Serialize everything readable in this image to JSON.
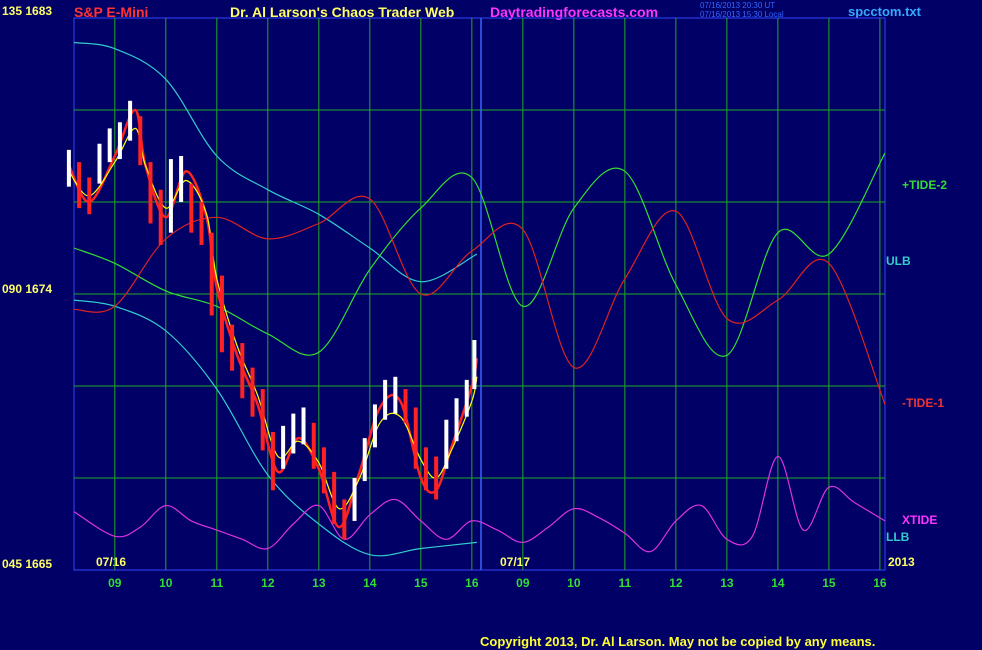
{
  "header": {
    "instrument": "S&P E-Mini",
    "title": "Dr. Al Larson's Chaos Trader Web",
    "site": "Daytradingforecasts.com",
    "timestamp_ut": "07/16/2013 20:30 UT",
    "timestamp_local": "07/16/2013 15:30 Local",
    "filename": "spcctom.txt"
  },
  "footer": {
    "copyright": "Copyright 2013, Dr. Al Larson. May not be copied by any means."
  },
  "chart_data": {
    "type": "line",
    "y_axis_labels": [
      "135 1683",
      "090 1674",
      "045 1665"
    ],
    "ylim": [
      1665,
      1683
    ],
    "x_ticks": [
      "09",
      "10",
      "11",
      "12",
      "13",
      "14",
      "15",
      "16",
      "09",
      "10",
      "11",
      "12",
      "13",
      "14",
      "15",
      "16"
    ],
    "date_labels": [
      "07/16",
      "07/17",
      "2013"
    ],
    "series_labels": [
      "+TIDE-2",
      "ULB",
      "-TIDE-1",
      "XTIDE",
      "LLB"
    ],
    "colors": {
      "background": "#000066",
      "grid": "#22aa22",
      "price_up": "#ffffff",
      "price_down": "#ff2222",
      "average": "#ffff00",
      "bands": "#33cccc",
      "tide_pos": "#33dd33",
      "tide_neg": "#dd2222",
      "xtide": "#dd33dd"
    },
    "series": [
      {
        "name": "ULB",
        "x": [
          8.2,
          9.0,
          10.0,
          11.0,
          12.0,
          13.0,
          14.0,
          15.0,
          16.1
        ],
        "y": [
          1682.2,
          1682.0,
          1681.0,
          1678.5,
          1677.4,
          1676.6,
          1675.5,
          1674.4,
          1675.3
        ]
      },
      {
        "name": "LLB",
        "x": [
          8.2,
          9.0,
          10.0,
          11.0,
          12.0,
          13.0,
          14.0,
          15.0,
          16.1
        ],
        "y": [
          1673.8,
          1673.6,
          1672.8,
          1670.9,
          1668.1,
          1666.5,
          1665.5,
          1665.7,
          1665.9
        ]
      },
      {
        "name": "+TIDE-2",
        "x": [
          8.2,
          9.0,
          10.0,
          11.0,
          12.0,
          13.0,
          14.0,
          15.0,
          16.0,
          17.0,
          18.0,
          19.0,
          20.0,
          21.0,
          22.0,
          23.0,
          24.1
        ],
        "y": [
          1675.5,
          1675.0,
          1674.1,
          1673.6,
          1672.7,
          1672.1,
          1674.8,
          1676.8,
          1677.8,
          1673.6,
          1676.8,
          1678.0,
          1674.3,
          1672.0,
          1676.0,
          1675.3,
          1678.6
        ]
      },
      {
        "name": "-TIDE-1",
        "x": [
          8.2,
          9.0,
          10.0,
          11.0,
          12.0,
          13.0,
          14.0,
          15.0,
          16.0,
          17.0,
          18.0,
          19.0,
          20.0,
          21.0,
          22.0,
          23.0,
          24.1
        ],
        "y": [
          1673.5,
          1673.6,
          1675.8,
          1676.5,
          1675.8,
          1676.3,
          1677.1,
          1674.0,
          1675.4,
          1676.1,
          1671.6,
          1674.5,
          1676.7,
          1673.2,
          1673.8,
          1675.0,
          1670.4
        ]
      },
      {
        "name": "Price",
        "x": [
          8.1,
          8.5,
          9.0,
          9.4,
          9.6,
          10.0,
          10.4,
          10.8,
          11.0,
          11.4,
          11.8,
          12.2,
          12.6,
          13.0,
          13.4,
          13.8,
          14.2,
          14.6,
          15.0,
          15.3,
          15.6,
          16.0,
          16.1
        ],
        "y": [
          1678.2,
          1677.0,
          1678.5,
          1680.0,
          1678.2,
          1676.5,
          1678.0,
          1676.5,
          1674.2,
          1672.0,
          1670.4,
          1668.2,
          1669.3,
          1668.3,
          1666.4,
          1668.2,
          1670.3,
          1670.5,
          1668.0,
          1667.6,
          1669.0,
          1671.0,
          1671.9
        ]
      },
      {
        "name": "Average",
        "x": [
          8.1,
          8.5,
          9.0,
          9.4,
          9.6,
          10.0,
          10.4,
          10.8,
          11.0,
          11.4,
          11.8,
          12.2,
          12.6,
          13.0,
          13.4,
          13.8,
          14.2,
          14.6,
          15.0,
          15.3,
          15.6,
          16.0,
          16.1
        ],
        "y": [
          1678.0,
          1677.2,
          1678.3,
          1679.4,
          1678.2,
          1676.8,
          1677.7,
          1676.6,
          1674.5,
          1672.3,
          1670.7,
          1668.7,
          1669.2,
          1668.5,
          1667.0,
          1668.0,
          1669.8,
          1670.0,
          1668.6,
          1668.0,
          1668.9,
          1670.5,
          1671.3
        ]
      },
      {
        "name": "XTIDE",
        "x": [
          8.2,
          9.0,
          9.5,
          10.0,
          10.5,
          11.0,
          11.5,
          12.0,
          12.5,
          13.0,
          13.5,
          14.0,
          14.5,
          15.0,
          15.5,
          16.0,
          16.5,
          17.0,
          17.5,
          18.0,
          18.5,
          19.0,
          19.5,
          20.0,
          20.5,
          21.0,
          21.5,
          22.0,
          22.5,
          23.0,
          23.5,
          24.1
        ],
        "y": [
          1666.9,
          1666.1,
          1666.4,
          1667.1,
          1666.6,
          1666.3,
          1666.0,
          1665.7,
          1666.5,
          1667.1,
          1666.0,
          1666.8,
          1667.3,
          1666.6,
          1666.0,
          1666.6,
          1666.3,
          1665.9,
          1666.4,
          1667.0,
          1666.7,
          1666.2,
          1665.6,
          1666.6,
          1667.1,
          1666.0,
          1666.1,
          1668.7,
          1666.3,
          1667.7,
          1667.2,
          1666.6
        ]
      }
    ],
    "price_bars": [
      {
        "x": 8.1,
        "low": 1677.5,
        "high": 1678.7
      },
      {
        "x": 8.3,
        "low": 1676.8,
        "high": 1678.3
      },
      {
        "x": 8.5,
        "low": 1676.6,
        "high": 1677.8
      },
      {
        "x": 8.7,
        "low": 1677.6,
        "high": 1678.9
      },
      {
        "x": 8.9,
        "low": 1678.3,
        "high": 1679.4
      },
      {
        "x": 9.1,
        "low": 1678.4,
        "high": 1679.6
      },
      {
        "x": 9.3,
        "low": 1679.0,
        "high": 1680.3
      },
      {
        "x": 9.5,
        "low": 1678.2,
        "high": 1679.8
      },
      {
        "x": 9.7,
        "low": 1676.3,
        "high": 1678.3
      },
      {
        "x": 9.9,
        "low": 1675.6,
        "high": 1677.4
      },
      {
        "x": 10.1,
        "low": 1676.0,
        "high": 1678.4
      },
      {
        "x": 10.3,
        "low": 1677.0,
        "high": 1678.5
      },
      {
        "x": 10.5,
        "low": 1676.0,
        "high": 1677.6
      },
      {
        "x": 10.7,
        "low": 1675.6,
        "high": 1677.0
      },
      {
        "x": 10.9,
        "low": 1673.3,
        "high": 1676.0
      },
      {
        "x": 11.1,
        "low": 1672.1,
        "high": 1674.6
      },
      {
        "x": 11.3,
        "low": 1671.5,
        "high": 1673.0
      },
      {
        "x": 11.5,
        "low": 1670.6,
        "high": 1672.4
      },
      {
        "x": 11.7,
        "low": 1670.0,
        "high": 1671.6
      },
      {
        "x": 11.9,
        "low": 1668.9,
        "high": 1670.9
      },
      {
        "x": 12.1,
        "low": 1667.6,
        "high": 1669.5
      },
      {
        "x": 12.3,
        "low": 1668.3,
        "high": 1669.7
      },
      {
        "x": 12.5,
        "low": 1668.8,
        "high": 1670.1
      },
      {
        "x": 12.7,
        "low": 1669.1,
        "high": 1670.3
      },
      {
        "x": 12.9,
        "low": 1668.3,
        "high": 1669.8
      },
      {
        "x": 13.1,
        "low": 1667.5,
        "high": 1669.0
      },
      {
        "x": 13.3,
        "low": 1666.5,
        "high": 1668.2
      },
      {
        "x": 13.5,
        "low": 1666.0,
        "high": 1667.3
      },
      {
        "x": 13.7,
        "low": 1666.6,
        "high": 1668.0
      },
      {
        "x": 13.9,
        "low": 1667.9,
        "high": 1669.3
      },
      {
        "x": 14.1,
        "low": 1669.0,
        "high": 1670.4
      },
      {
        "x": 14.3,
        "low": 1669.9,
        "high": 1671.2
      },
      {
        "x": 14.5,
        "low": 1670.1,
        "high": 1671.3
      },
      {
        "x": 14.7,
        "low": 1669.8,
        "high": 1670.9
      },
      {
        "x": 14.9,
        "low": 1668.3,
        "high": 1670.3
      },
      {
        "x": 15.1,
        "low": 1667.6,
        "high": 1669.0
      },
      {
        "x": 15.3,
        "low": 1667.3,
        "high": 1668.7
      },
      {
        "x": 15.5,
        "low": 1668.3,
        "high": 1669.9
      },
      {
        "x": 15.7,
        "low": 1669.2,
        "high": 1670.6
      },
      {
        "x": 15.9,
        "low": 1670.0,
        "high": 1671.2
      },
      {
        "x": 16.05,
        "low": 1670.9,
        "high": 1672.5
      }
    ]
  }
}
